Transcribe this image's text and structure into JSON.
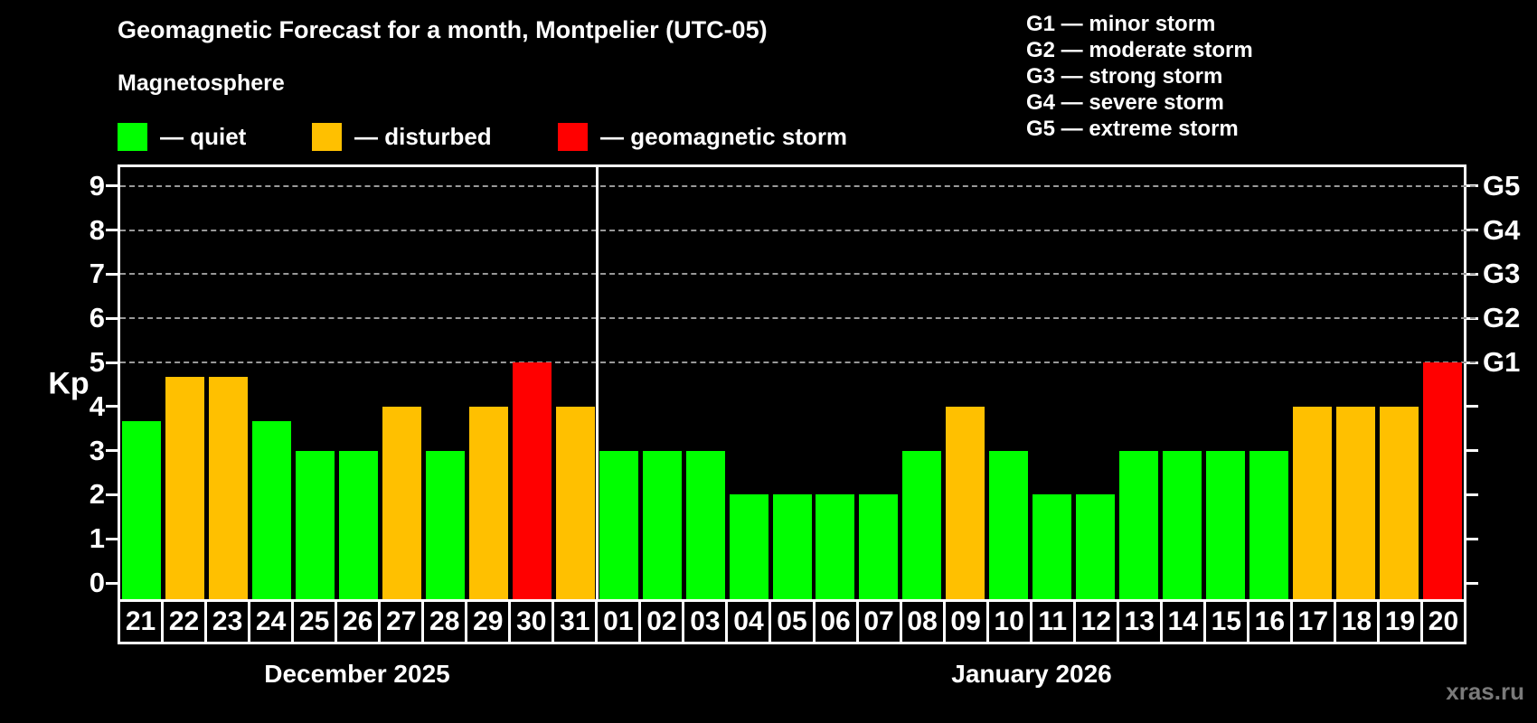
{
  "header": {
    "title": "Geomagnetic Forecast for a month, Montpelier (UTC-05)",
    "subtitle": "Magnetosphere"
  },
  "legend": {
    "items": [
      {
        "status": "quiet",
        "label": "— quiet"
      },
      {
        "status": "disturbed",
        "label": "— disturbed"
      },
      {
        "status": "storm",
        "label": "— geomagnetic storm"
      }
    ]
  },
  "g_scale_legend": {
    "items": [
      "G1 — minor storm",
      "G2 — moderate storm",
      "G3 — strong storm",
      "G4 — severe storm",
      "G5 — extreme storm"
    ]
  },
  "colors": {
    "quiet": "#00ff00",
    "disturbed": "#ffc000",
    "storm": "#ff0000",
    "background": "#000000",
    "text": "#ffffff",
    "gridline": "#999999",
    "watermark": "#7a7a7a"
  },
  "footer": {
    "watermark": "xras.ru"
  },
  "chart_data": {
    "type": "bar",
    "title": "Geomagnetic Forecast for a month, Montpelier (UTC-05)",
    "ylabel": "Kp",
    "xlabel": "",
    "ylim": [
      0,
      9.4
    ],
    "yticks": [
      0,
      1,
      2,
      3,
      4,
      5,
      6,
      7,
      8,
      9
    ],
    "gridlines_at": [
      5,
      6,
      7,
      8,
      9
    ],
    "grid": "dashed horizontal lines at storm levels G1-G5",
    "legend_position": "top-left",
    "right_axis": [
      {
        "kp": 5,
        "label": "G1"
      },
      {
        "kp": 6,
        "label": "G2"
      },
      {
        "kp": 7,
        "label": "G3"
      },
      {
        "kp": 8,
        "label": "G4"
      },
      {
        "kp": 9,
        "label": "G5"
      }
    ],
    "sections": [
      {
        "label": "December 2025",
        "days": [
          {
            "day": "21",
            "kp": 3.67,
            "status": "quiet"
          },
          {
            "day": "22",
            "kp": 4.67,
            "status": "disturbed"
          },
          {
            "day": "23",
            "kp": 4.67,
            "status": "disturbed"
          },
          {
            "day": "24",
            "kp": 3.67,
            "status": "quiet"
          },
          {
            "day": "25",
            "kp": 3,
            "status": "quiet"
          },
          {
            "day": "26",
            "kp": 3,
            "status": "quiet"
          },
          {
            "day": "27",
            "kp": 4,
            "status": "disturbed"
          },
          {
            "day": "28",
            "kp": 3,
            "status": "quiet"
          },
          {
            "day": "29",
            "kp": 4,
            "status": "disturbed"
          },
          {
            "day": "30",
            "kp": 5,
            "status": "storm"
          },
          {
            "day": "31",
            "kp": 4,
            "status": "disturbed"
          }
        ]
      },
      {
        "label": "January 2026",
        "days": [
          {
            "day": "01",
            "kp": 3,
            "status": "quiet"
          },
          {
            "day": "02",
            "kp": 3,
            "status": "quiet"
          },
          {
            "day": "03",
            "kp": 3,
            "status": "quiet"
          },
          {
            "day": "04",
            "kp": 2,
            "status": "quiet"
          },
          {
            "day": "05",
            "kp": 2,
            "status": "quiet"
          },
          {
            "day": "06",
            "kp": 2,
            "status": "quiet"
          },
          {
            "day": "07",
            "kp": 2,
            "status": "quiet"
          },
          {
            "day": "08",
            "kp": 3,
            "status": "quiet"
          },
          {
            "day": "09",
            "kp": 4,
            "status": "disturbed"
          },
          {
            "day": "10",
            "kp": 3,
            "status": "quiet"
          },
          {
            "day": "11",
            "kp": 2,
            "status": "quiet"
          },
          {
            "day": "12",
            "kp": 2,
            "status": "quiet"
          },
          {
            "day": "13",
            "kp": 3,
            "status": "quiet"
          },
          {
            "day": "14",
            "kp": 3,
            "status": "quiet"
          },
          {
            "day": "15",
            "kp": 3,
            "status": "quiet"
          },
          {
            "day": "16",
            "kp": 3,
            "status": "quiet"
          },
          {
            "day": "17",
            "kp": 4,
            "status": "disturbed"
          },
          {
            "day": "18",
            "kp": 4,
            "status": "disturbed"
          },
          {
            "day": "19",
            "kp": 4,
            "status": "disturbed"
          },
          {
            "day": "20",
            "kp": 5,
            "status": "storm"
          }
        ]
      }
    ]
  }
}
